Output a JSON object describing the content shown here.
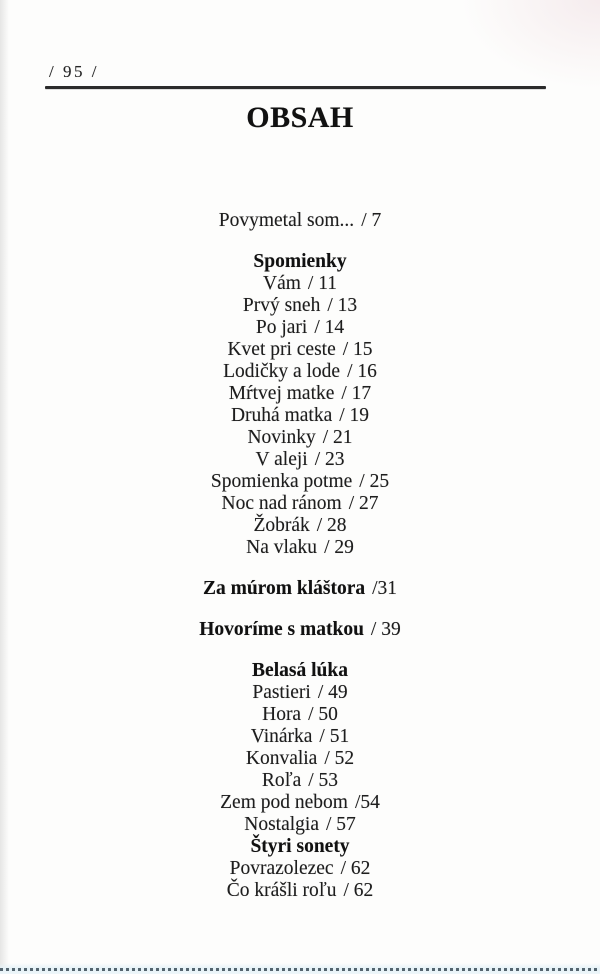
{
  "page": {
    "marker": "/ 95 /",
    "title": "OBSAH"
  },
  "toc_lines": [
    {
      "kind": "entry",
      "text": "Povymetal som...",
      "page": "/ 7",
      "space_before": false
    },
    {
      "kind": "heading",
      "text": "Spomienky",
      "page": "",
      "space_before": true
    },
    {
      "kind": "entry",
      "text": "Vám",
      "page": "/ 11",
      "space_before": false
    },
    {
      "kind": "entry",
      "text": "Prvý sneh",
      "page": "/ 13",
      "space_before": false
    },
    {
      "kind": "entry",
      "text": "Po jari",
      "page": "/ 14",
      "space_before": false
    },
    {
      "kind": "entry",
      "text": "Kvet pri ceste",
      "page": "/ 15",
      "space_before": false
    },
    {
      "kind": "entry",
      "text": "Lodičky a lode",
      "page": "/ 16",
      "space_before": false
    },
    {
      "kind": "entry",
      "text": "Mŕtvej matke",
      "page": "/ 17",
      "space_before": false
    },
    {
      "kind": "entry",
      "text": "Druhá matka",
      "page": "/ 19",
      "space_before": false
    },
    {
      "kind": "entry",
      "text": "Novinky",
      "page": "/ 21",
      "space_before": false
    },
    {
      "kind": "entry",
      "text": "V aleji",
      "page": "/ 23",
      "space_before": false
    },
    {
      "kind": "entry",
      "text": "Spomienka potme",
      "page": "/ 25",
      "space_before": false
    },
    {
      "kind": "entry",
      "text": "Noc nad ránom",
      "page": "/ 27",
      "space_before": false
    },
    {
      "kind": "entry",
      "text": "Žobrák",
      "page": "/ 28",
      "space_before": false
    },
    {
      "kind": "entry",
      "text": "Na vlaku",
      "page": "/ 29",
      "space_before": false
    },
    {
      "kind": "heading-entry",
      "text": "Za múrom kláštora",
      "page": "/31",
      "space_before": true
    },
    {
      "kind": "heading-entry",
      "text": "Hovoríme s matkou",
      "page": "/ 39",
      "space_before": true
    },
    {
      "kind": "heading",
      "text": "Belasá lúka",
      "page": "",
      "space_before": true
    },
    {
      "kind": "entry",
      "text": "Pastieri",
      "page": "/ 49",
      "space_before": false
    },
    {
      "kind": "entry",
      "text": "Hora",
      "page": "/ 50",
      "space_before": false
    },
    {
      "kind": "entry",
      "text": "Vinárka",
      "page": "/ 51",
      "space_before": false
    },
    {
      "kind": "entry",
      "text": "Konvalia",
      "page": "/ 52",
      "space_before": false
    },
    {
      "kind": "entry",
      "text": "Roľa",
      "page": "/ 53",
      "space_before": false
    },
    {
      "kind": "entry",
      "text": "Zem pod nebom",
      "page": "/54",
      "space_before": false
    },
    {
      "kind": "entry",
      "text": "Nostalgia",
      "page": "/ 57",
      "space_before": false
    },
    {
      "kind": "heading",
      "text": "Štyri sonety",
      "page": "",
      "space_before": false
    },
    {
      "kind": "entry",
      "text": "Povrazolezec",
      "page": "/ 62",
      "space_before": false
    },
    {
      "kind": "entry",
      "text": "Čo krášli roľu",
      "page": "/ 62",
      "space_before": false
    }
  ],
  "colors": {
    "ink": "#1e1e1e",
    "heading_ink": "#111111",
    "paper": "#fdfdfc",
    "rule": "#2b2b2b",
    "edge_dash": "#54656f",
    "edge_glow": "#e4f1f7"
  }
}
